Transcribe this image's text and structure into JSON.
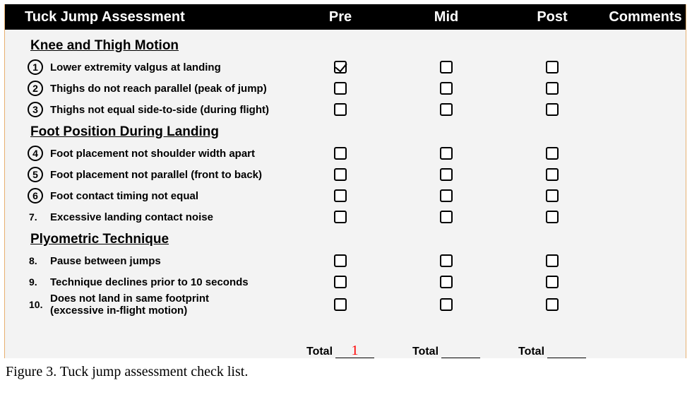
{
  "header": {
    "title": "Tuck Jump Assessment",
    "cols": [
      "Pre",
      "Mid",
      "Post"
    ],
    "comments": "Comments"
  },
  "sections": [
    {
      "title": "Knee and Thigh Motion",
      "items": [
        {
          "num": "1",
          "circled": true,
          "label": "Lower extremity valgus at landing",
          "pre": true,
          "mid": false,
          "post": false
        },
        {
          "num": "2",
          "circled": true,
          "label": "Thighs do not reach parallel (peak of jump)",
          "pre": false,
          "mid": false,
          "post": false
        },
        {
          "num": "3",
          "circled": true,
          "label": "Thighs not equal side-to-side (during flight)",
          "pre": false,
          "mid": false,
          "post": false
        }
      ]
    },
    {
      "title": "Foot Position During Landing",
      "items": [
        {
          "num": "4",
          "circled": true,
          "label": "Foot placement not shoulder width apart",
          "pre": false,
          "mid": false,
          "post": false
        },
        {
          "num": "5",
          "circled": true,
          "label": "Foot placement not parallel (front to back)",
          "pre": false,
          "mid": false,
          "post": false
        },
        {
          "num": "6",
          "circled": true,
          "label": "Foot contact timing not equal",
          "pre": false,
          "mid": false,
          "post": false
        },
        {
          "num": "7.",
          "circled": false,
          "label": "Excessive landing contact noise",
          "pre": false,
          "mid": false,
          "post": false
        }
      ]
    },
    {
      "title": "Plyometric Technique",
      "items": [
        {
          "num": "8.",
          "circled": false,
          "label": "Pause between jumps",
          "pre": false,
          "mid": false,
          "post": false
        },
        {
          "num": "9.",
          "circled": false,
          "label": "Technique declines prior to 10 seconds",
          "pre": false,
          "mid": false,
          "post": false
        },
        {
          "num": "10.",
          "circled": false,
          "label": "Does not land in same footprint\n(excessive in-flight motion)",
          "pre": false,
          "mid": false,
          "post": false
        }
      ]
    }
  ],
  "totals": {
    "label": "Total",
    "pre": "1",
    "mid": "",
    "post": ""
  },
  "caption": "Figure 3. Tuck jump assessment check list.",
  "style": {
    "header_bg": "#000000",
    "header_fg": "#ffffff",
    "sheet_bg": "#f3f3f3",
    "side_border": "#e8b070",
    "total_value_color": "#ff0000",
    "checkbox_border": "#000000"
  }
}
